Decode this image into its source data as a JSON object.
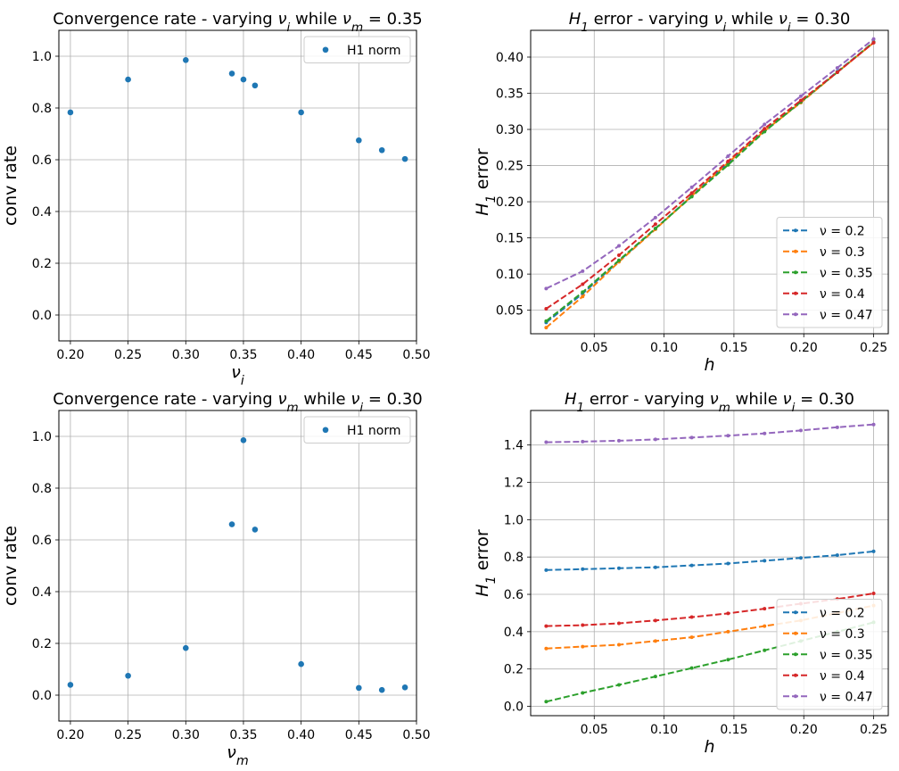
{
  "colors": {
    "tab_blue": "#1f77b4",
    "tab_orange": "#ff7f0e",
    "tab_green": "#2ca02c",
    "tab_red": "#d62728",
    "tab_purple": "#9467bd",
    "grid": "#b0b0b0",
    "frame": "#000000"
  },
  "chart_data": [
    {
      "type": "scatter",
      "title": "Convergence rate - varying ν_i while ν_m = 0.35",
      "xlabel": "ν_i",
      "ylabel": "conv rate",
      "xlim": [
        0.19,
        0.5
      ],
      "ylim": [
        -0.1,
        1.1
      ],
      "xticks": [
        "0.20",
        "0.25",
        "0.30",
        "0.35",
        "0.40",
        "0.45",
        "0.50"
      ],
      "yticks": [
        "0.0",
        "0.2",
        "0.4",
        "0.6",
        "0.8",
        "1.0"
      ],
      "grid": true,
      "legend_position": "upper right",
      "series": [
        {
          "name": "H1 norm",
          "color": "tab_blue",
          "x": [
            0.2,
            0.25,
            0.3,
            0.34,
            0.35,
            0.36,
            0.4,
            0.45,
            0.47,
            0.49
          ],
          "y": [
            0.783,
            0.91,
            0.985,
            0.933,
            0.91,
            0.887,
            0.783,
            0.675,
            0.637,
            0.603
          ]
        }
      ]
    },
    {
      "type": "line",
      "title": "H_1 error - varying ν_i while ν_i = 0.30",
      "xlabel": "h",
      "ylabel": "H_1 error",
      "xlim": [
        0.0045,
        0.2605
      ],
      "ylim": [
        0.0175,
        0.437
      ],
      "xticks": [
        "0.05",
        "0.10",
        "0.15",
        "0.20",
        "0.25"
      ],
      "yticks": [
        "0.05",
        "0.10",
        "0.15",
        "0.20",
        "0.25",
        "0.30",
        "0.35",
        "0.40"
      ],
      "grid": true,
      "legend_position": "lower right",
      "x": [
        0.0156,
        0.0417,
        0.0677,
        0.0938,
        0.1198,
        0.1458,
        0.1719,
        0.1979,
        0.224,
        0.25
      ],
      "series": [
        {
          "name": "ν = 0.2",
          "color": "tab_blue",
          "values": [
            0.033,
            0.073,
            0.118,
            0.163,
            0.208,
            0.254,
            0.299,
            0.338,
            0.38,
            0.42
          ]
        },
        {
          "name": "ν = 0.3",
          "color": "tab_orange",
          "values": [
            0.026,
            0.069,
            0.117,
            0.162,
            0.208,
            0.254,
            0.298,
            0.337,
            0.379,
            0.42
          ]
        },
        {
          "name": "ν = 0.35",
          "color": "tab_green",
          "values": [
            0.035,
            0.075,
            0.119,
            0.163,
            0.207,
            0.251,
            0.297,
            0.338,
            0.379,
            0.421
          ]
        },
        {
          "name": "ν = 0.4",
          "color": "tab_red",
          "values": [
            0.052,
            0.086,
            0.126,
            0.169,
            0.212,
            0.256,
            0.301,
            0.34,
            0.379,
            0.42
          ]
        },
        {
          "name": "ν = 0.47",
          "color": "tab_purple",
          "values": [
            0.08,
            0.104,
            0.139,
            0.178,
            0.22,
            0.263,
            0.307,
            0.346,
            0.385,
            0.425
          ]
        }
      ]
    },
    {
      "type": "scatter",
      "title": "Convergence rate - varying ν_m while ν_i = 0.30",
      "xlabel": "ν_m",
      "ylabel": "conv rate",
      "xlim": [
        0.19,
        0.5
      ],
      "ylim": [
        -0.1,
        1.1
      ],
      "xticks": [
        "0.20",
        "0.25",
        "0.30",
        "0.35",
        "0.40",
        "0.45",
        "0.50"
      ],
      "yticks": [
        "0.0",
        "0.2",
        "0.4",
        "0.6",
        "0.8",
        "1.0"
      ],
      "grid": true,
      "legend_position": "upper right",
      "series": [
        {
          "name": "H1 norm",
          "color": "tab_blue",
          "x": [
            0.2,
            0.25,
            0.3,
            0.34,
            0.35,
            0.36,
            0.4,
            0.45,
            0.47,
            0.49
          ],
          "y": [
            0.04,
            0.075,
            0.182,
            0.66,
            0.985,
            0.64,
            0.12,
            0.028,
            0.02,
            0.03
          ]
        }
      ]
    },
    {
      "type": "line",
      "title": "H_1 error - varying ν_m while ν_i = 0.30",
      "xlabel": "h",
      "ylabel": "H_1 error",
      "xlim": [
        0.0045,
        0.2605
      ],
      "ylim": [
        -0.05,
        1.585
      ],
      "xticks": [
        "0.05",
        "0.10",
        "0.15",
        "0.20",
        "0.25"
      ],
      "yticks": [
        "0.0",
        "0.2",
        "0.4",
        "0.6",
        "0.8",
        "1.0",
        "1.2",
        "1.4"
      ],
      "grid": true,
      "legend_position": "lower right",
      "x": [
        0.0156,
        0.0417,
        0.0677,
        0.0938,
        0.1198,
        0.1458,
        0.1719,
        0.1979,
        0.224,
        0.25
      ],
      "series": [
        {
          "name": "ν = 0.2",
          "color": "tab_blue",
          "values": [
            0.73,
            0.735,
            0.74,
            0.745,
            0.755,
            0.765,
            0.78,
            0.795,
            0.81,
            0.83
          ]
        },
        {
          "name": "ν = 0.3",
          "color": "tab_orange",
          "values": [
            0.31,
            0.32,
            0.33,
            0.35,
            0.37,
            0.4,
            0.43,
            0.46,
            0.5,
            0.54
          ]
        },
        {
          "name": "ν = 0.35",
          "color": "tab_green",
          "values": [
            0.025,
            0.072,
            0.115,
            0.16,
            0.205,
            0.25,
            0.3,
            0.35,
            0.4,
            0.45
          ]
        },
        {
          "name": "ν = 0.4",
          "color": "tab_red",
          "values": [
            0.43,
            0.435,
            0.445,
            0.46,
            0.478,
            0.498,
            0.523,
            0.55,
            0.575,
            0.605
          ]
        },
        {
          "name": "ν = 0.47",
          "color": "tab_purple",
          "values": [
            1.415,
            1.418,
            1.423,
            1.43,
            1.44,
            1.45,
            1.462,
            1.478,
            1.495,
            1.51
          ]
        }
      ]
    }
  ]
}
